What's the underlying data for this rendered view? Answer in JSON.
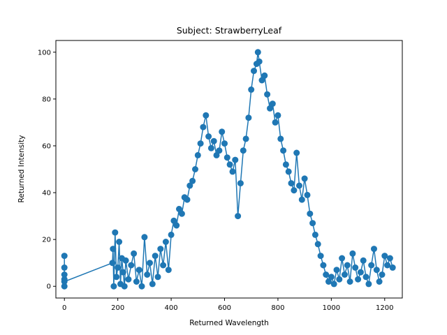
{
  "chart_data": {
    "type": "line",
    "title": "Subject: StrawberryLeaf",
    "xlabel": "Returned Wavelength",
    "ylabel": "Returned Intensity",
    "xlim": [
      -32,
      1266
    ],
    "ylim": [
      -5,
      105
    ],
    "xticks": [
      0,
      200,
      400,
      600,
      800,
      1000,
      1200
    ],
    "yticks": [
      0,
      20,
      40,
      60,
      80,
      100
    ],
    "grid": false,
    "color": "#1f77b4",
    "marker": "circle",
    "series": [
      {
        "x": [
          0,
          0,
          0,
          0,
          0,
          0,
          180,
          182,
          185,
          190,
          195,
          200,
          205,
          210,
          215,
          220,
          225,
          230,
          240,
          250,
          260,
          270,
          280,
          290,
          300,
          310,
          320,
          330,
          340,
          350,
          360,
          370,
          380,
          390,
          400,
          410,
          420,
          430,
          440,
          450,
          460,
          470,
          480,
          490,
          500,
          510,
          520,
          530,
          540,
          550,
          560,
          570,
          580,
          590,
          600,
          610,
          620,
          630,
          640,
          650,
          660,
          670,
          680,
          690,
          700,
          710,
          720,
          725,
          730,
          740,
          750,
          760,
          770,
          780,
          790,
          800,
          810,
          820,
          830,
          840,
          850,
          860,
          870,
          880,
          890,
          900,
          910,
          920,
          930,
          940,
          950,
          960,
          970,
          980,
          990,
          1000,
          1010,
          1020,
          1030,
          1040,
          1050,
          1060,
          1070,
          1080,
          1090,
          1100,
          1110,
          1120,
          1130,
          1140,
          1150,
          1160,
          1170,
          1180,
          1190,
          1200,
          1210,
          1220,
          1230
        ],
        "y": [
          3,
          13,
          8,
          0,
          5,
          2,
          10,
          16,
          0,
          23,
          4,
          8,
          19,
          1,
          12,
          6,
          0,
          11,
          3,
          9,
          14,
          2,
          7,
          0,
          21,
          5,
          10,
          1,
          13,
          4,
          16,
          9,
          19,
          7,
          22,
          28,
          26,
          33,
          31,
          38,
          37,
          43,
          45,
          50,
          56,
          61,
          68,
          73,
          64,
          59,
          62,
          56,
          58,
          66,
          61,
          55,
          52,
          49,
          54,
          30,
          44,
          58,
          63,
          72,
          84,
          92,
          95,
          100,
          96,
          88,
          90,
          82,
          76,
          78,
          70,
          73,
          63,
          58,
          52,
          49,
          44,
          41,
          57,
          43,
          37,
          46,
          39,
          31,
          27,
          22,
          18,
          13,
          9,
          5,
          2,
          4,
          1,
          7,
          3,
          12,
          5,
          9,
          2,
          14,
          8,
          3,
          6,
          11,
          4,
          1,
          9,
          16,
          7,
          2,
          5,
          13,
          9,
          12,
          8
        ]
      }
    ]
  }
}
